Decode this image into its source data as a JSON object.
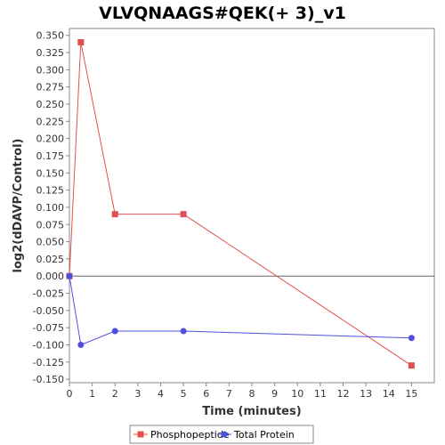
{
  "chart_data": {
    "type": "line",
    "title": "VLVQNAAGS#QEK(+ 3)_v1",
    "xlabel": "Time (minutes)",
    "ylabel": "log2(dDAVP/Control)",
    "xlim": [
      0,
      16
    ],
    "ylim": [
      -0.155,
      0.36
    ],
    "x_ticks": [
      0,
      1,
      2,
      3,
      4,
      5,
      6,
      7,
      8,
      9,
      10,
      11,
      12,
      13,
      14,
      15
    ],
    "y_ticks": [
      -0.15,
      -0.125,
      -0.1,
      -0.075,
      -0.05,
      -0.025,
      0,
      0.025,
      0.05,
      0.075,
      0.1,
      0.125,
      0.15,
      0.175,
      0.2,
      0.225,
      0.25,
      0.275,
      0.3,
      0.325,
      0.35
    ],
    "y_tick_labels": [
      "-0.150",
      "-0.125",
      "-0.100",
      "-0.075",
      "-0.050",
      "-0.025",
      "0.000",
      "0.025",
      "0.050",
      "0.075",
      "0.100",
      "0.125",
      "0.150",
      "0.175",
      "0.200",
      "0.225",
      "0.250",
      "0.275",
      "0.300",
      "0.325",
      "0.350"
    ],
    "grid": false,
    "zero_line": true,
    "legend_position": "bottom",
    "series": [
      {
        "name": "Phosphopeptide",
        "color": "#e05050",
        "marker": "square",
        "x": [
          0,
          0.5,
          2,
          5,
          15
        ],
        "y": [
          0.0,
          0.34,
          0.09,
          0.09,
          -0.13
        ]
      },
      {
        "name": "Total Protein",
        "color": "#5050e0",
        "marker": "circle",
        "x": [
          0,
          0.5,
          2,
          5,
          15
        ],
        "y": [
          0.0,
          -0.1,
          -0.08,
          -0.08,
          -0.09
        ]
      }
    ]
  }
}
